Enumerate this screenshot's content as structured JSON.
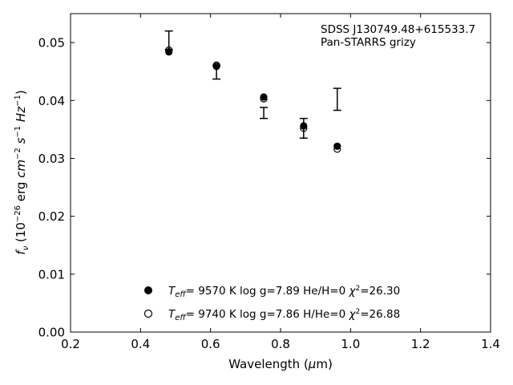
{
  "chart_data": {
    "type": "scatter",
    "title": "",
    "annotation_lines": [
      "SDSS J130749.48+615533.7",
      "Pan-STARRS grizy"
    ],
    "xlabel": "Wavelength (μm)",
    "ylabel": "fν (10⁻²⁶ erg cm⁻² s⁻¹ Hz⁻¹)",
    "xlim": [
      0.2,
      1.4
    ],
    "ylim": [
      0.0,
      0.055
    ],
    "xticks": [
      "0.2",
      "0.4",
      "0.6",
      "0.8",
      "1.0",
      "1.2",
      "1.4"
    ],
    "xtick_values": [
      0.2,
      0.4,
      0.6,
      0.8,
      1.0,
      1.2,
      1.4
    ],
    "yticks": [
      "0.00",
      "0.01",
      "0.02",
      "0.03",
      "0.04",
      "0.05"
    ],
    "ytick_values": [
      0.0,
      0.01,
      0.02,
      0.03,
      0.04,
      0.05
    ],
    "grid": false,
    "legend_position": "bottom-center",
    "observed": {
      "x": [
        0.481,
        0.617,
        0.752,
        0.866,
        0.962
      ],
      "low": [
        0.0488,
        0.0437,
        0.0369,
        0.0335,
        0.0383
      ],
      "high": [
        0.052,
        0.046,
        0.0388,
        0.0369,
        0.0421
      ]
    },
    "series": [
      {
        "name": "T_eff= 9570 K log g=7.89 He/H=0 χ²=26.30",
        "marker": "filled-circle",
        "x": [
          0.481,
          0.617,
          0.752,
          0.866,
          0.962
        ],
        "y": [
          0.0484,
          0.0459,
          0.0406,
          0.0356,
          0.0321
        ]
      },
      {
        "name": "T_eff= 9740 K log g=7.86 H/He=0 χ²=26.88",
        "marker": "open-circle",
        "x": [
          0.481,
          0.617,
          0.752,
          0.866,
          0.962
        ],
        "y": [
          0.0487,
          0.0461,
          0.0403,
          0.0352,
          0.0316
        ]
      }
    ],
    "legend": [
      {
        "marker": "filled-circle",
        "teff": "9570",
        "logg": "7.89",
        "comp": "He/H=0",
        "chi2": "26.30"
      },
      {
        "marker": "open-circle",
        "teff": "9740",
        "logg": "7.86",
        "comp": "H/He=0",
        "chi2": "26.88"
      }
    ]
  }
}
